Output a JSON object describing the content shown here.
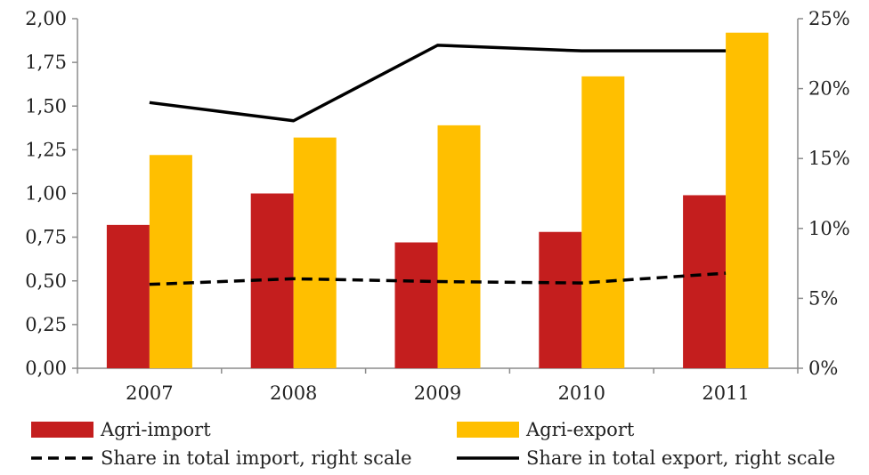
{
  "chart_data": {
    "type": "bar",
    "categories": [
      "2007",
      "2008",
      "2009",
      "2010",
      "2011"
    ],
    "series": [
      {
        "name": "Agri-import",
        "kind": "bar",
        "axis": "left",
        "color": "#c41e1e",
        "values": [
          0.82,
          1.0,
          0.72,
          0.78,
          0.99
        ]
      },
      {
        "name": "Agri-export",
        "kind": "bar",
        "axis": "left",
        "color": "#ffbf00",
        "values": [
          1.22,
          1.32,
          1.39,
          1.67,
          1.92
        ]
      },
      {
        "name": "Share in total import, right scale",
        "kind": "line",
        "axis": "right",
        "style": "dashed",
        "color": "#000000",
        "values": [
          6.0,
          6.4,
          6.2,
          6.1,
          6.8
        ]
      },
      {
        "name": "Share in total export, right scale",
        "kind": "line",
        "axis": "right",
        "style": "solid",
        "color": "#000000",
        "values": [
          19.0,
          17.7,
          23.1,
          22.7,
          22.7
        ]
      }
    ],
    "yticks_left": [
      "0,00",
      "0,25",
      "0,50",
      "0,75",
      "1,00",
      "1,25",
      "1,50",
      "1,75",
      "2,00"
    ],
    "yticks_right": [
      "0%",
      "5%",
      "10%",
      "15%",
      "20%",
      "25%"
    ],
    "ylim_left": [
      0,
      2
    ],
    "ylim_right": [
      0,
      25
    ],
    "grid": false,
    "legend_placement": "bottom"
  }
}
